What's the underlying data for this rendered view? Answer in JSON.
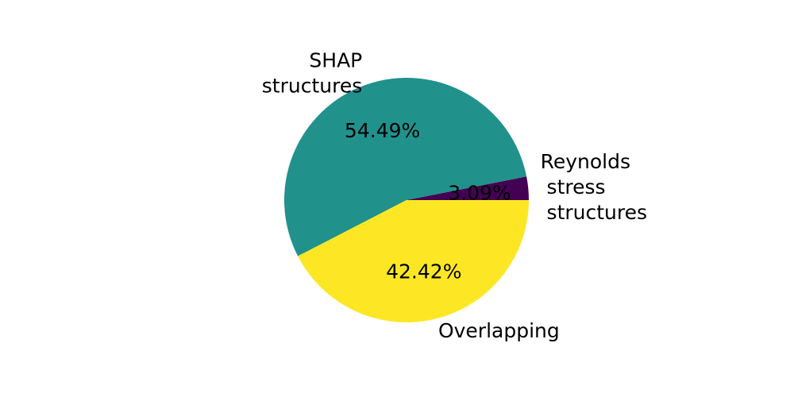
{
  "chart_data": {
    "type": "pie",
    "start_angle_deg": 0,
    "direction": "counterclockwise",
    "slices": [
      {
        "label_lines": [
          "Reynolds",
          " stress",
          " structures"
        ],
        "value": 3.09,
        "pct_label": "3.09%",
        "color": "#440154"
      },
      {
        "label_lines": [
          "SHAP",
          "structures"
        ],
        "value": 54.49,
        "pct_label": "54.49%",
        "color": "#21918c"
      },
      {
        "label_lines": [
          "Overlapping"
        ],
        "value": 42.42,
        "pct_label": "42.42%",
        "color": "#fde725"
      }
    ]
  }
}
